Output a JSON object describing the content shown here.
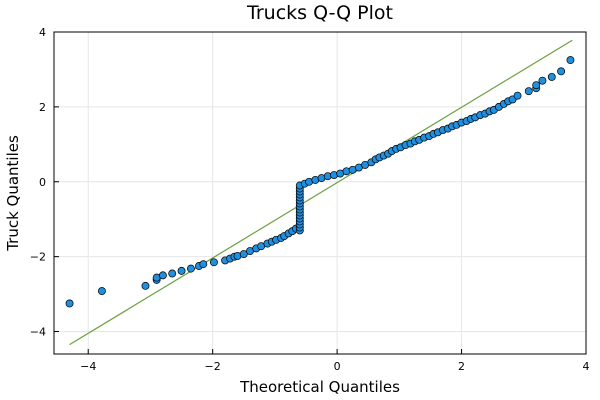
{
  "chart_data": {
    "type": "scatter",
    "title": "Trucks Q-Q Plot",
    "xlabel": "Theoretical Quantiles",
    "ylabel": "Truck Quantiles",
    "xlim": [
      -4.55,
      4.0
    ],
    "ylim": [
      -4.6,
      4.0
    ],
    "xticks": [
      -4,
      -2,
      0,
      2,
      4
    ],
    "yticks": [
      -4,
      -2,
      0,
      2,
      4
    ],
    "grid": true,
    "legend": "none",
    "colors": {
      "points": "#1f8fde",
      "reference_line": "#6aa040",
      "frame": "#000000"
    },
    "reference_line": {
      "x": [
        -4.3,
        3.78
      ],
      "y": [
        -4.35,
        3.78
      ]
    },
    "series": [
      {
        "points": [
          [
            -4.3,
            -3.25
          ],
          [
            -3.78,
            -2.92
          ],
          [
            -3.08,
            -2.78
          ],
          [
            -2.9,
            -2.62
          ],
          [
            -2.9,
            -2.56
          ],
          [
            -2.8,
            -2.5
          ],
          [
            -2.65,
            -2.45
          ],
          [
            -2.5,
            -2.38
          ],
          [
            -2.35,
            -2.32
          ],
          [
            -2.22,
            -2.25
          ],
          [
            -2.15,
            -2.2
          ],
          [
            -1.98,
            -2.15
          ],
          [
            -1.8,
            -2.1
          ],
          [
            -1.72,
            -2.05
          ],
          [
            -1.65,
            -2.0
          ],
          [
            -1.6,
            -1.98
          ],
          [
            -1.5,
            -1.93
          ],
          [
            -1.4,
            -1.85
          ],
          [
            -1.3,
            -1.78
          ],
          [
            -1.22,
            -1.72
          ],
          [
            -1.12,
            -1.65
          ],
          [
            -1.05,
            -1.6
          ],
          [
            -0.98,
            -1.55
          ],
          [
            -0.9,
            -1.5
          ],
          [
            -0.85,
            -1.45
          ],
          [
            -0.78,
            -1.38
          ],
          [
            -0.72,
            -1.32
          ],
          [
            -0.66,
            -1.25
          ],
          [
            -0.6,
            -1.3
          ],
          [
            -0.6,
            -1.22
          ],
          [
            -0.6,
            -1.14
          ],
          [
            -0.6,
            -1.06
          ],
          [
            -0.6,
            -0.98
          ],
          [
            -0.6,
            -0.9
          ],
          [
            -0.6,
            -0.82
          ],
          [
            -0.6,
            -0.74
          ],
          [
            -0.6,
            -0.66
          ],
          [
            -0.6,
            -0.58
          ],
          [
            -0.6,
            -0.5
          ],
          [
            -0.6,
            -0.42
          ],
          [
            -0.6,
            -0.34
          ],
          [
            -0.6,
            -0.26
          ],
          [
            -0.6,
            -0.18
          ],
          [
            -0.6,
            -0.1
          ],
          [
            -0.52,
            -0.05
          ],
          [
            -0.45,
            0.0
          ],
          [
            -0.35,
            0.05
          ],
          [
            -0.25,
            0.1
          ],
          [
            -0.15,
            0.15
          ],
          [
            -0.05,
            0.18
          ],
          [
            0.05,
            0.22
          ],
          [
            0.15,
            0.28
          ],
          [
            0.25,
            0.32
          ],
          [
            0.35,
            0.38
          ],
          [
            0.45,
            0.45
          ],
          [
            0.55,
            0.52
          ],
          [
            0.62,
            0.6
          ],
          [
            0.68,
            0.65
          ],
          [
            0.75,
            0.7
          ],
          [
            0.82,
            0.75
          ],
          [
            0.88,
            0.82
          ],
          [
            0.95,
            0.88
          ],
          [
            1.02,
            0.92
          ],
          [
            1.1,
            0.98
          ],
          [
            1.18,
            1.02
          ],
          [
            1.25,
            1.08
          ],
          [
            1.32,
            1.12
          ],
          [
            1.4,
            1.18
          ],
          [
            1.48,
            1.22
          ],
          [
            1.55,
            1.28
          ],
          [
            1.62,
            1.32
          ],
          [
            1.7,
            1.38
          ],
          [
            1.78,
            1.42
          ],
          [
            1.85,
            1.48
          ],
          [
            1.92,
            1.52
          ],
          [
            2.0,
            1.58
          ],
          [
            2.08,
            1.62
          ],
          [
            2.15,
            1.68
          ],
          [
            2.22,
            1.72
          ],
          [
            2.3,
            1.78
          ],
          [
            2.38,
            1.82
          ],
          [
            2.45,
            1.88
          ],
          [
            2.52,
            1.92
          ],
          [
            2.6,
            2.0
          ],
          [
            2.68,
            2.08
          ],
          [
            2.75,
            2.15
          ],
          [
            2.82,
            2.2
          ],
          [
            2.9,
            2.3
          ],
          [
            3.08,
            2.42
          ],
          [
            3.2,
            2.5
          ],
          [
            3.2,
            2.58
          ],
          [
            3.3,
            2.7
          ],
          [
            3.45,
            2.8
          ],
          [
            3.6,
            2.95
          ],
          [
            3.75,
            3.25
          ]
        ]
      }
    ]
  }
}
